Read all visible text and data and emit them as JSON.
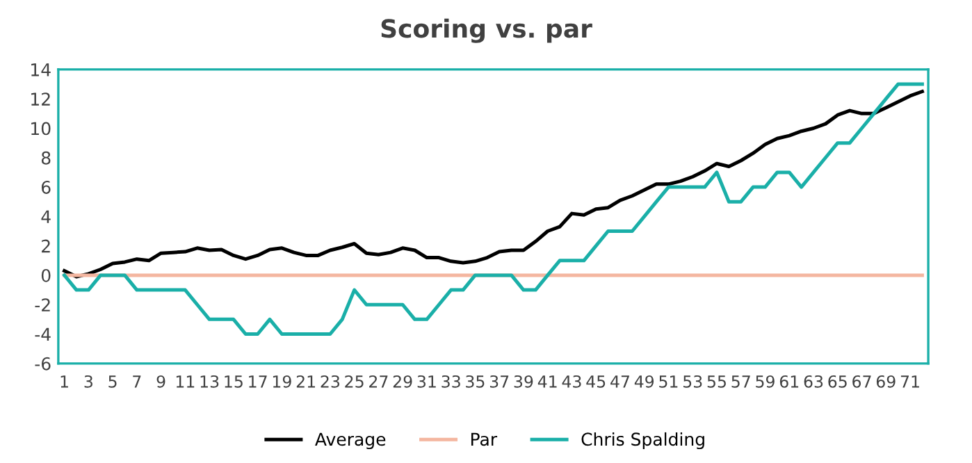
{
  "chart_data": {
    "type": "line",
    "title": "Scoring vs. par",
    "categories": [
      "1",
      null,
      "3",
      null,
      "5",
      null,
      "7",
      null,
      "9",
      null,
      "11",
      null,
      "13",
      null,
      "15",
      null,
      "17",
      null,
      "19",
      null,
      "21",
      null,
      "23",
      null,
      "25",
      null,
      "27",
      null,
      "29",
      null,
      "31",
      null,
      "33",
      null,
      "35",
      null,
      "37",
      null,
      "39",
      null,
      "41",
      null,
      "43",
      null,
      "45",
      null,
      "47",
      null,
      "49",
      null,
      "51",
      null,
      "53",
      null,
      "55",
      null,
      "57",
      null,
      "59",
      null,
      "61",
      null,
      "63",
      null,
      "65",
      null,
      "67",
      null,
      "69",
      null,
      "71",
      null
    ],
    "series": [
      {
        "name": "Average",
        "color": "#000000",
        "values": [
          0.3,
          -0.1,
          0.1,
          0.4,
          0.8,
          0.9,
          1.1,
          1.0,
          1.5,
          1.55,
          1.6,
          1.85,
          1.7,
          1.75,
          1.35,
          1.1,
          1.35,
          1.75,
          1.85,
          1.55,
          1.35,
          1.35,
          1.7,
          1.9,
          2.15,
          1.5,
          1.4,
          1.55,
          1.85,
          1.7,
          1.2,
          1.2,
          0.95,
          0.85,
          0.95,
          1.2,
          1.6,
          1.7,
          1.7,
          2.3,
          3.0,
          3.3,
          4.2,
          4.1,
          4.5,
          4.6,
          5.1,
          5.4,
          5.8,
          6.2,
          6.2,
          6.4,
          6.7,
          7.1,
          7.6,
          7.4,
          7.8,
          8.3,
          8.9,
          9.3,
          9.5,
          9.8,
          10.0,
          10.3,
          10.9,
          11.2,
          11.0,
          11.0,
          11.4,
          11.8,
          12.2,
          12.5
        ]
      },
      {
        "name": "Par",
        "color": "#f4b6a0",
        "values": [
          0,
          0,
          0,
          0,
          0,
          0,
          0,
          0,
          0,
          0,
          0,
          0,
          0,
          0,
          0,
          0,
          0,
          0,
          0,
          0,
          0,
          0,
          0,
          0,
          0,
          0,
          0,
          0,
          0,
          0,
          0,
          0,
          0,
          0,
          0,
          0,
          0,
          0,
          0,
          0,
          0,
          0,
          0,
          0,
          0,
          0,
          0,
          0,
          0,
          0,
          0,
          0,
          0,
          0,
          0,
          0,
          0,
          0,
          0,
          0,
          0,
          0,
          0,
          0,
          0,
          0,
          0,
          0,
          0,
          0,
          0,
          0
        ]
      },
      {
        "name": "Chris Spalding",
        "color": "#1aafa8",
        "values": [
          0,
          -1,
          -1,
          0,
          0,
          0,
          -1,
          -1,
          -1,
          -1,
          -1,
          -2,
          -3,
          -3,
          -3,
          -4,
          -4,
          -3,
          -4,
          -4,
          -4,
          -4,
          -4,
          -3,
          -1,
          -2,
          -2,
          -2,
          -2,
          -3,
          -3,
          -2,
          -1,
          -1,
          0,
          0,
          0,
          0,
          -1,
          -1,
          0,
          1,
          1,
          1,
          2,
          3,
          3,
          3,
          4,
          5,
          6,
          6,
          6,
          6,
          7,
          5,
          5,
          6,
          6,
          7,
          7,
          6,
          7,
          8,
          9,
          9,
          10,
          11,
          12,
          13,
          13,
          13
        ]
      }
    ],
    "ylim": [
      -6,
      14
    ],
    "yticks": [
      -6,
      -4,
      -2,
      0,
      2,
      4,
      6,
      8,
      10,
      12,
      14
    ],
    "grid": false,
    "legend": "bottom",
    "marker": "none",
    "line_style": "solid"
  }
}
